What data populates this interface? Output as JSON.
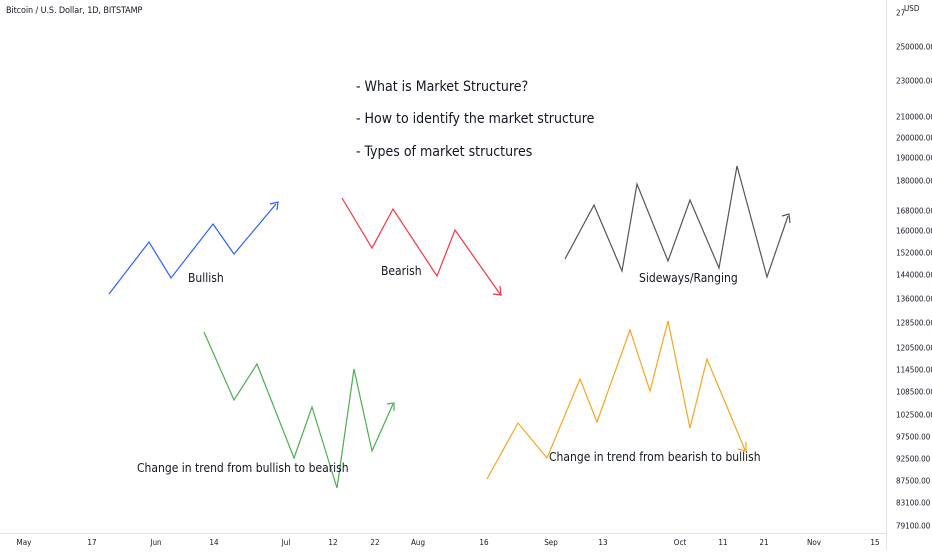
{
  "header": {
    "symbol_line": "Bitcoin / U.S. Dollar, 1D, BITSTAMP"
  },
  "price_axis": {
    "currency": "USD",
    "labels": [
      "27",
      "250000.00",
      "230000.00",
      "210000.00",
      "200000.00",
      "190000.00",
      "180000.00",
      "168000.00",
      "160000.00",
      "152000.00",
      "144000.00",
      "136000.00",
      "128500.00",
      "120500.00",
      "114500.00",
      "108500.00",
      "102500.00",
      "97500.00",
      "92500.00",
      "87500.00",
      "83100.00",
      "79100.00"
    ]
  },
  "time_axis": {
    "labels": [
      "May",
      "17",
      "Jun",
      "14",
      "Jul",
      "12",
      "22",
      "Aug",
      "16",
      "Sep",
      "13",
      "Oct",
      "11",
      "21",
      "Nov",
      "15"
    ]
  },
  "notes": {
    "title_1": "- What is Market Structure?",
    "title_2": "- How to identify the market structure",
    "title_3": "- Types of market structures",
    "bullish": "Bullish",
    "bearish": "Bearish",
    "sideways": "Sideways/Ranging",
    "bull_to_bear": "Change in trend from bullish to bearish",
    "bear_to_bull": "Change in trend from bearish to bullish"
  },
  "colors": {
    "bullish": "#2962ff",
    "bearish": "#f23645",
    "sideways": "#555555",
    "bull_to_bear": "#4caf50",
    "bear_to_bull": "#f5a623"
  }
}
